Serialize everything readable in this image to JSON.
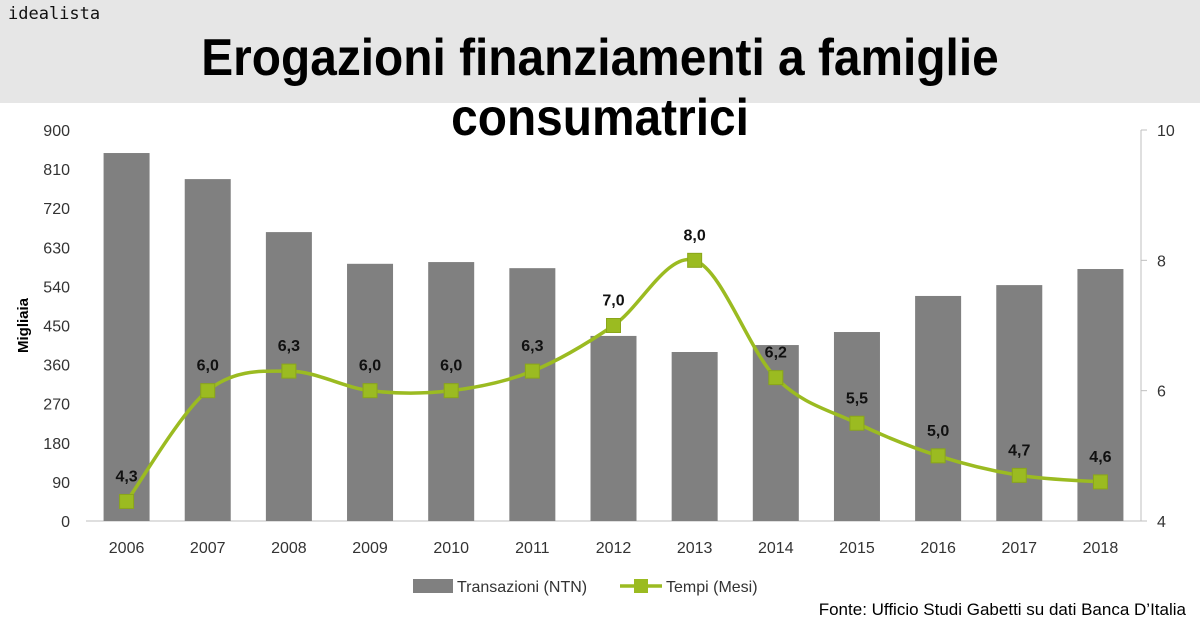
{
  "header": {
    "brand": "idealista",
    "title": "Erogazioni finanziamenti a famiglie consumatrici"
  },
  "source": "Fonte: Ufficio Studi Gabetti su dati Banca D’Italia",
  "chart_data": {
    "type": "bar+line",
    "categories": [
      "2006",
      "2007",
      "2008",
      "2009",
      "2010",
      "2011",
      "2012",
      "2013",
      "2014",
      "2015",
      "2016",
      "2017",
      "2018"
    ],
    "series": [
      {
        "name": "Transazioni (NTN)",
        "type": "bar",
        "axis": "left",
        "color": "#808080",
        "values": [
          847,
          787,
          665,
          592,
          596,
          582,
          426,
          389,
          405,
          435,
          518,
          543,
          580
        ]
      },
      {
        "name": "Tempi (Mesi)",
        "type": "line",
        "axis": "right",
        "color": "#9bbb21",
        "marker": "square",
        "smooth": true,
        "values": [
          4.3,
          6.0,
          6.3,
          6.0,
          6.0,
          6.3,
          7.0,
          8.0,
          6.2,
          5.5,
          5.0,
          4.7,
          4.6
        ],
        "labels": [
          "4,3",
          "6,0",
          "6,3",
          "6,0",
          "6,0",
          "6,3",
          "7,0",
          "8,0",
          "6,2",
          "5,5",
          "5,0",
          "4,7",
          "4,6"
        ]
      }
    ],
    "ylabel": "Migliaia",
    "ylim": [
      0,
      900
    ],
    "yticks": [
      "0",
      "90",
      "180",
      "270",
      "360",
      "450",
      "540",
      "630",
      "720",
      "810",
      "900"
    ],
    "y2lim": [
      4,
      10
    ],
    "y2ticks": [
      "4",
      "6",
      "8",
      "10"
    ],
    "grid": false,
    "legend": "bottom"
  }
}
